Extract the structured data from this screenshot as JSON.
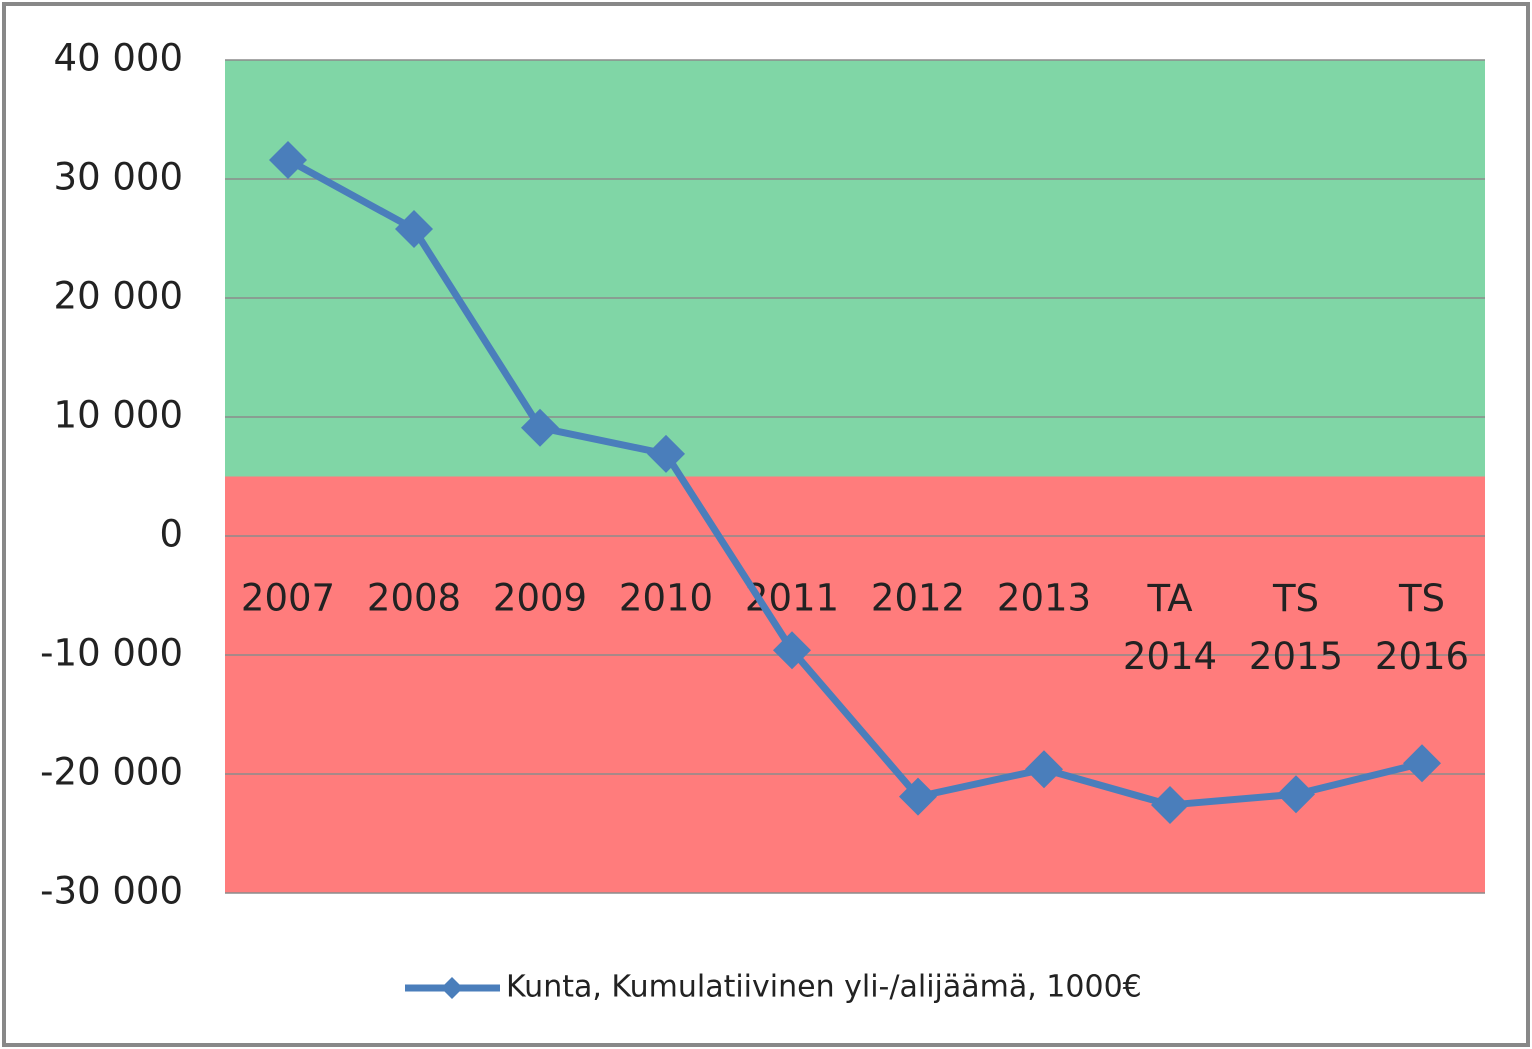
{
  "chart_data": {
    "type": "line",
    "categories": [
      "2007",
      "2008",
      "2009",
      "2010",
      "2011",
      "2012",
      "2013",
      "TA 2014",
      "TS 2015",
      "TS 2016"
    ],
    "series": [
      {
        "name": "Kunta, Kumulatiivinen yli-/alijäämä, 1000€",
        "color": "#4a7ebb",
        "values": [
          31600,
          25800,
          9100,
          6900,
          -9600,
          -21900,
          -19600,
          -22600,
          -21700,
          -19100
        ]
      }
    ],
    "ylim": [
      -30000,
      40000
    ],
    "yticks": [
      {
        "value": 40000,
        "label": "40 000"
      },
      {
        "value": 30000,
        "label": "30 000"
      },
      {
        "value": 20000,
        "label": "20 000"
      },
      {
        "value": 10000,
        "label": "10 000"
      },
      0,
      {
        "value": -10000,
        "label": "-10 000"
      },
      {
        "value": -20000,
        "label": "-20 000"
      },
      {
        "value": -30000,
        "label": "-30 000"
      }
    ],
    "grid": true,
    "bands": [
      {
        "from": 5000,
        "to": 40000,
        "color": "#80d6a6"
      },
      {
        "from": -30000,
        "to": 5000,
        "color": "#ff7c7c"
      }
    ],
    "legend": "bottom"
  }
}
